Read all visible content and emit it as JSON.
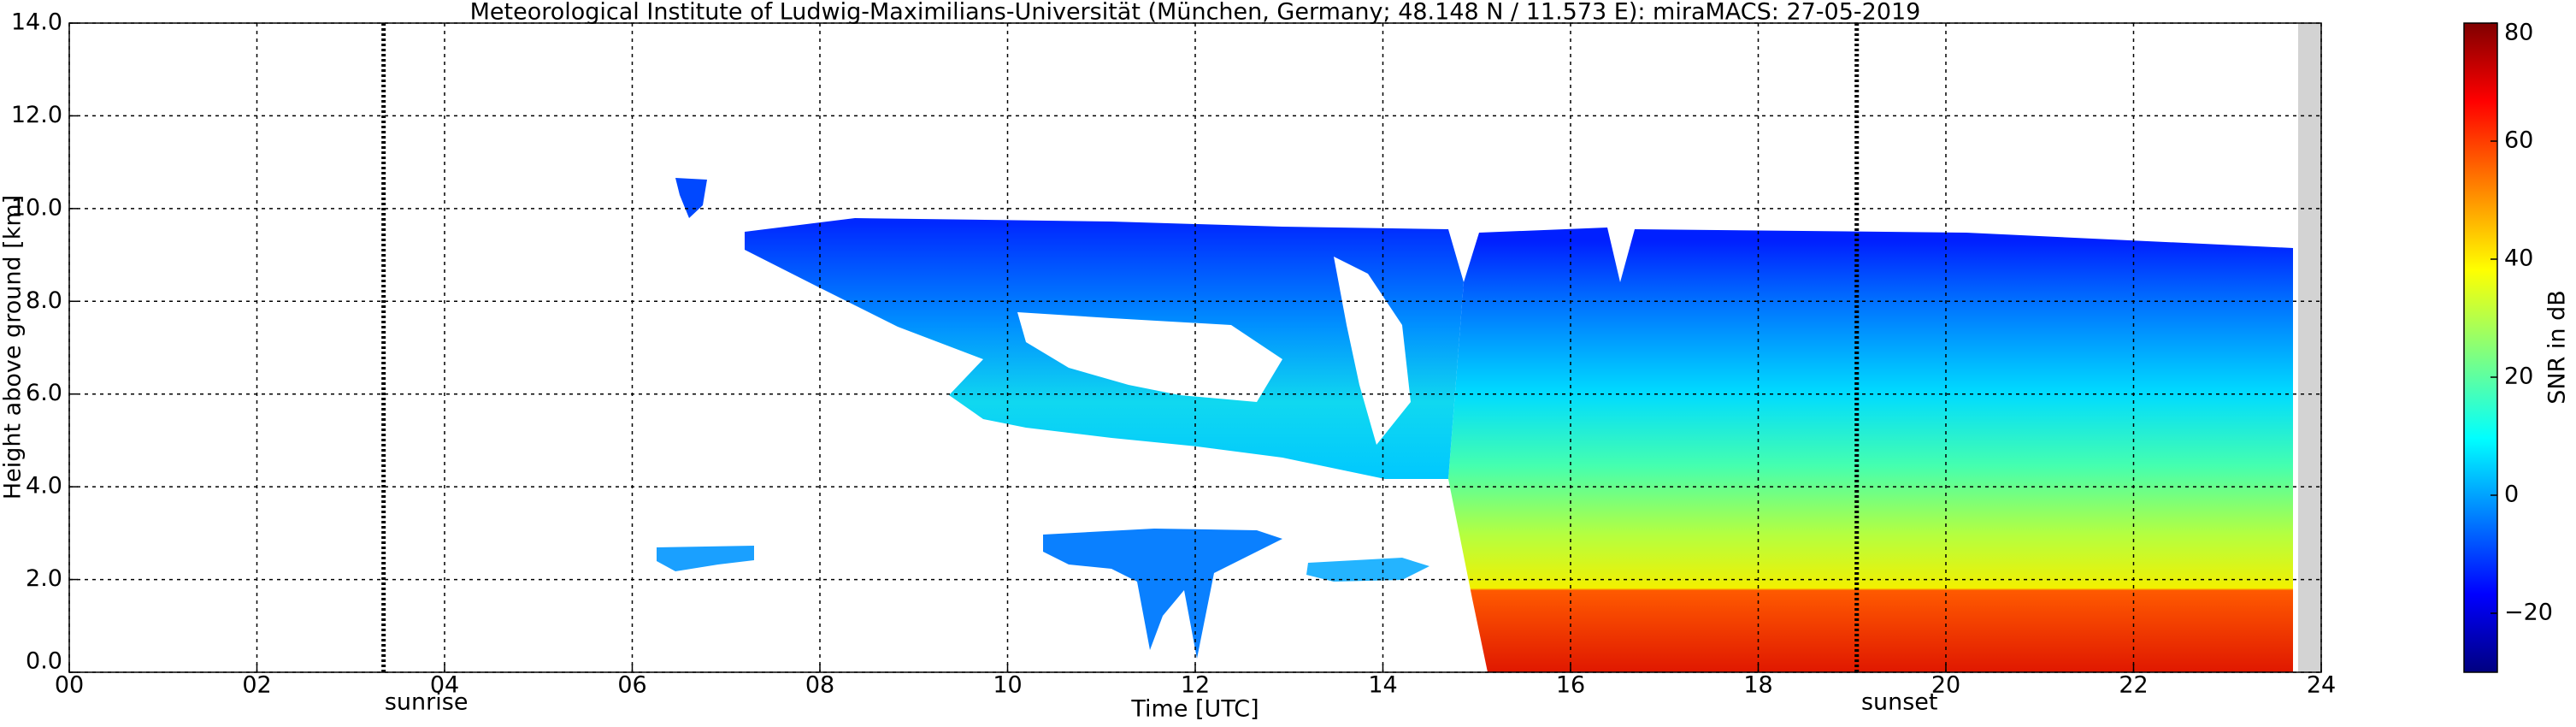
{
  "chart_data": {
    "type": "heatmap",
    "title": "Meteorological Institute of Ludwig-Maximilians-Universität (München, Germany; 48.148 N / 11.573 E):    miraMACS: 27-05-2019",
    "x_label": "Time [UTC]",
    "y_label": "Height above ground [km]",
    "xlim": [
      0,
      24
    ],
    "ylim": [
      0,
      14
    ],
    "xticks": [
      {
        "value": 0,
        "label": "00"
      },
      {
        "value": 2,
        "label": "02"
      },
      {
        "value": 4,
        "label": "04"
      },
      {
        "value": 6,
        "label": "06"
      },
      {
        "value": 8,
        "label": "08"
      },
      10,
      12,
      14,
      16,
      18,
      20,
      22,
      24
    ],
    "yticks": [
      {
        "value": 0,
        "label": "0.0"
      },
      {
        "value": 2,
        "label": "2.0"
      },
      {
        "value": 4,
        "label": "4.0"
      },
      {
        "value": 6,
        "label": "6.0"
      },
      {
        "value": 8,
        "label": "8.0"
      },
      {
        "value": 10,
        "label": "10.0"
      },
      {
        "value": 12,
        "label": "12.0"
      },
      {
        "value": 14,
        "label": "14.0"
      }
    ],
    "grid": true,
    "colormap": "jet",
    "colorbar_label": "SNR in dB",
    "clim": [
      -30,
      80
    ],
    "colorbar_ticks": [
      {
        "value": -20,
        "label": "−20"
      },
      0,
      20,
      40,
      60,
      80
    ],
    "annotations": [
      {
        "text": "sunrise",
        "x": 3.35
      },
      {
        "text": "sunset",
        "x": 19.05
      }
    ]
  }
}
